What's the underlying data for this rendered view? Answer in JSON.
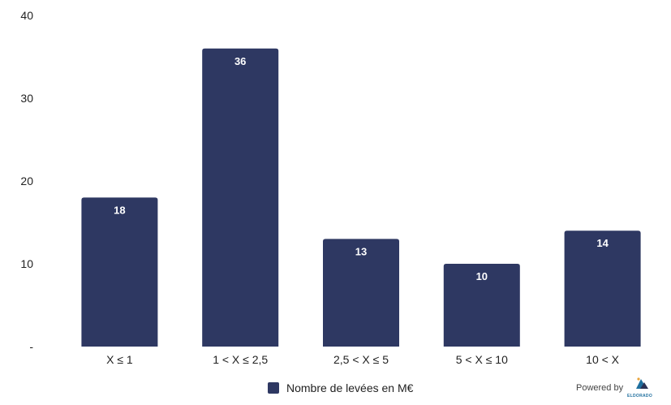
{
  "chart_data": {
    "type": "bar",
    "categories": [
      "X ≤ 1",
      "1 <  X ≤ 2,5",
      "2,5 < X ≤ 5",
      "5 < X ≤ 10",
      "10 < X"
    ],
    "series": [
      {
        "name": "Nombre de levées en M€",
        "values": [
          18,
          36,
          13,
          10,
          14
        ],
        "color": "#2e3862"
      }
    ],
    "yticks": [
      "-",
      "10",
      "20",
      "30",
      "40"
    ],
    "ylim": [
      0,
      40
    ],
    "grid": false,
    "legend_position": "bottom-center",
    "title": "",
    "xlabel": "",
    "ylabel": ""
  },
  "footer": {
    "powered_by": "Powered by",
    "logo_text": "ELDORADO",
    "logo_icon": "eldorado-mountain-icon"
  }
}
